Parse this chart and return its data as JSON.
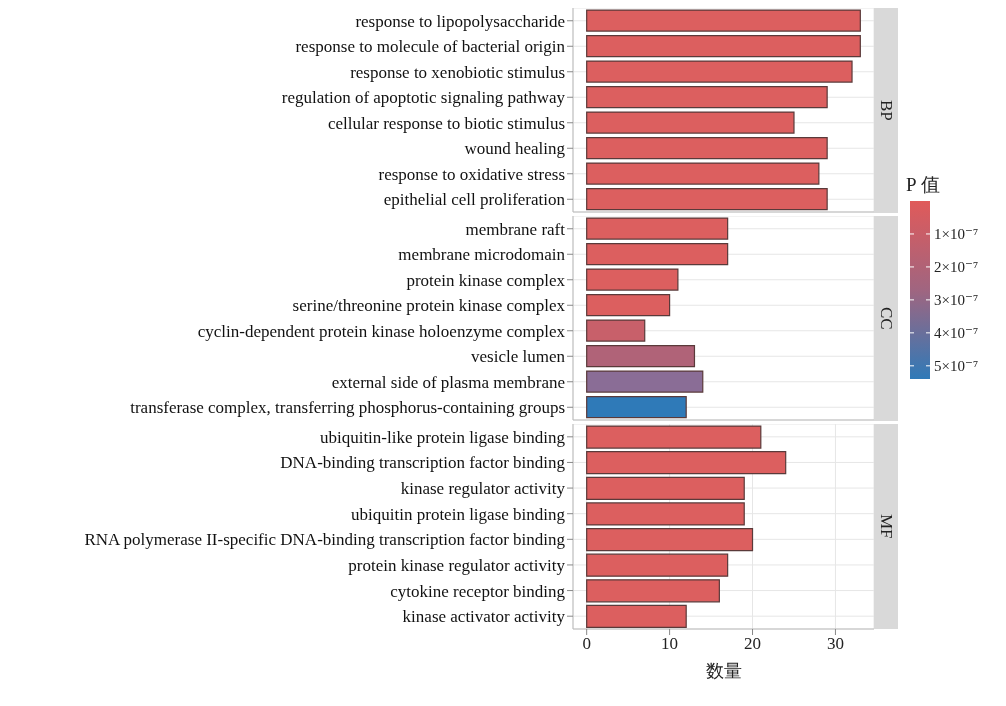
{
  "chart_data": [
    {
      "type": "bar",
      "orientation": "horizontal",
      "title": "BP",
      "categories": [
        "response to lipopolysaccharide",
        "response to molecule of bacterial origin",
        "response to xenobiotic stimulus",
        "regulation of apoptotic signaling pathway",
        "cellular response to biotic stimulus",
        "wound healing",
        "response to oxidative stress",
        "epithelial cell proliferation"
      ],
      "values": [
        33,
        33,
        32,
        29,
        25,
        29,
        28,
        29
      ],
      "colors": [
        "#dc5f5f",
        "#dc5f5f",
        "#dc5f5f",
        "#dc5f5f",
        "#dc5f5f",
        "#dc5f5f",
        "#dc5f5f",
        "#dc5f5f"
      ],
      "xlim": [
        -1.65,
        34.65
      ],
      "xticks": [
        0,
        10,
        20,
        30
      ],
      "grid": true,
      "tick_labels": "y"
    },
    {
      "type": "bar",
      "orientation": "horizontal",
      "title": "CC",
      "categories": [
        "membrane raft",
        "membrane microdomain",
        "protein kinase complex",
        "serine/threonine protein kinase complex",
        "cyclin-dependent protein kinase holoenzyme complex",
        "vesicle lumen",
        "external side of plasma membrane",
        "transferase complex, transferring phosphorus-containing groups"
      ],
      "values": [
        17,
        17,
        11,
        10,
        7,
        13,
        14,
        12
      ],
      "colors": [
        "#dc5f5f",
        "#dc5f5f",
        "#dc5f5f",
        "#dc5f5f",
        "#c8606a",
        "#b06378",
        "#8a6d96",
        "#2f7ab8"
      ],
      "xlim": [
        -1.65,
        34.65
      ],
      "xticks": [
        0,
        10,
        20,
        30
      ],
      "grid": true,
      "tick_labels": "y",
      "clabel": "P 值",
      "clim": [
        0,
        5.4e-07
      ],
      "cticks": [
        {
          "value": 1e-07,
          "label": "1×10⁻⁷"
        },
        {
          "value": 2e-07,
          "label": "2×10⁻⁷"
        },
        {
          "value": 3e-07,
          "label": "3×10⁻⁷"
        },
        {
          "value": 4e-07,
          "label": "4×10⁻⁷"
        },
        {
          "value": 5e-07,
          "label": "5×10⁻⁷"
        }
      ]
    },
    {
      "type": "bar",
      "orientation": "horizontal",
      "title": "MF",
      "xlabel": "数量",
      "categories": [
        "ubiquitin-like protein ligase binding",
        "DNA-binding transcription factor binding",
        "kinase regulator activity",
        "ubiquitin protein ligase binding",
        "RNA polymerase II-specific DNA-binding transcription factor binding",
        "protein kinase regulator activity",
        "cytokine receptor binding",
        "kinase activator activity"
      ],
      "values": [
        21,
        24,
        19,
        19,
        20,
        17,
        16,
        12
      ],
      "colors": [
        "#dc5f5f",
        "#dc5f5f",
        "#dc5f5f",
        "#dc5f5f",
        "#dc5f5f",
        "#dc5f5f",
        "#dc5f5f",
        "#dc5f5f"
      ],
      "xlim": [
        -1.65,
        34.65
      ],
      "xticks": [
        0,
        10,
        20,
        30
      ],
      "grid": true
    }
  ]
}
